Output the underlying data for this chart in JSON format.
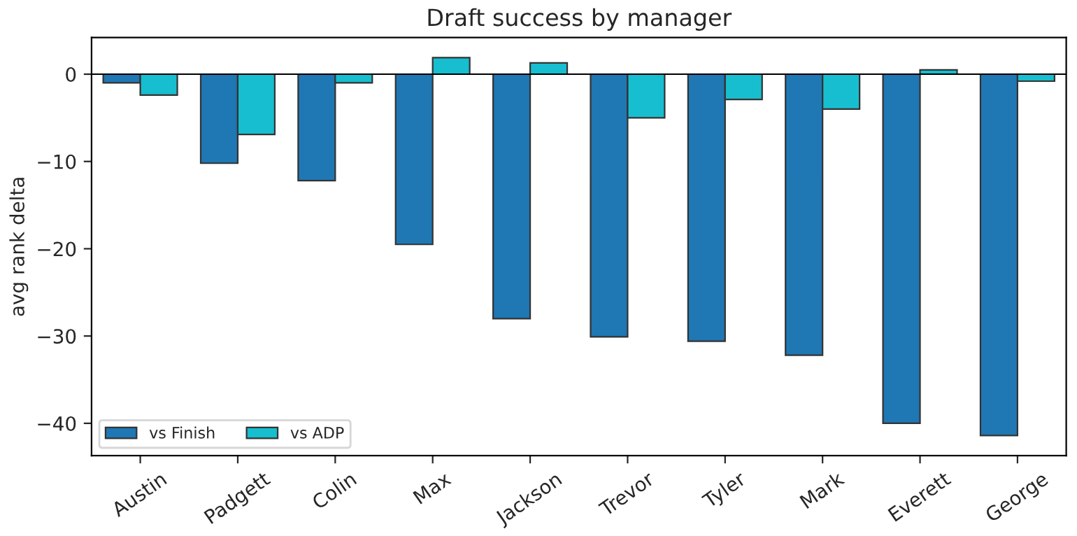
{
  "chart_data": {
    "type": "bar",
    "title": "Draft success by manager",
    "ylabel": "avg rank delta",
    "categories": [
      "Austin",
      "Padgett",
      "Colin",
      "Max",
      "Jackson",
      "Trevor",
      "Tyler",
      "Mark",
      "Everett",
      "George"
    ],
    "series": [
      {
        "name": "vs Finish",
        "color": "#1f77b4",
        "values": [
          -1.0,
          -10.2,
          -12.2,
          -19.5,
          -28.0,
          -30.1,
          -30.6,
          -32.2,
          -40.0,
          -41.4
        ]
      },
      {
        "name": "vs ADP",
        "color": "#17becf",
        "values": [
          -2.4,
          -6.9,
          -1.0,
          1.9,
          1.3,
          -5.0,
          -2.9,
          -4.0,
          0.5,
          -0.8
        ]
      }
    ],
    "ylim": [
      -43.7,
      4.2
    ],
    "yticks": [
      {
        "value": -40,
        "label": "−40"
      },
      {
        "value": -30,
        "label": "−30"
      },
      {
        "value": -20,
        "label": "−20"
      },
      {
        "value": -10,
        "label": "−10"
      },
      0
    ],
    "ref_lines": [
      {
        "axis": "y",
        "value": 0,
        "color": "#000000"
      }
    ],
    "legend": "bottom left",
    "grid": false
  }
}
